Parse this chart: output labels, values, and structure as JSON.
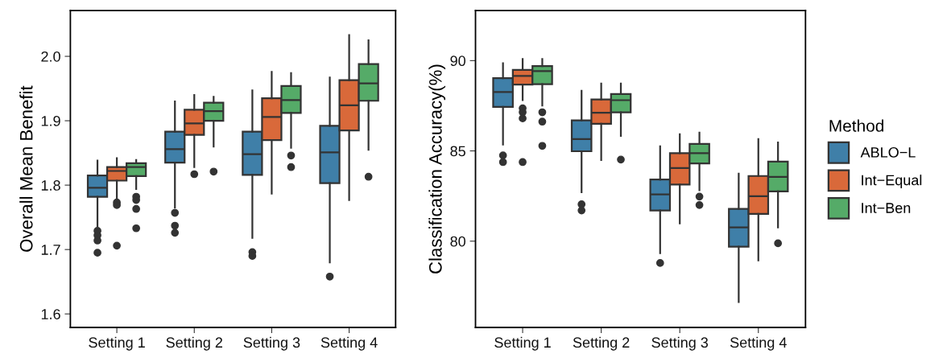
{
  "chart_data": [
    {
      "type": "box",
      "ylabel": "Overall Mean Benefit",
      "categories": [
        "Setting 1",
        "Setting 2",
        "Setting 3",
        "Setting 4"
      ],
      "ylim": [
        1.579,
        2.071
      ],
      "yticks": [
        1.6,
        1.7,
        1.8,
        1.9,
        {
          "value": 2.0,
          "label": "2.0"
        }
      ],
      "grid": false,
      "series": [
        {
          "color": "#3f7fa8",
          "boxes": [
            {
              "low": 1.736,
              "q1": 1.782,
              "median": 1.796,
              "q3": 1.815,
              "high": 1.838,
              "outliers": [
                1.729,
                1.722,
                1.714,
                1.695
              ]
            },
            {
              "low": 1.765,
              "q1": 1.835,
              "median": 1.856,
              "q3": 1.883,
              "high": 1.93,
              "outliers": [
                1.757,
                1.737,
                1.726
              ]
            },
            {
              "low": 1.718,
              "q1": 1.816,
              "median": 1.848,
              "q3": 1.883,
              "high": 1.947,
              "outliers": [
                1.696,
                1.69
              ]
            },
            {
              "low": 1.68,
              "q1": 1.803,
              "median": 1.851,
              "q3": 1.892,
              "high": 1.967,
              "outliers": [
                1.658
              ]
            }
          ]
        },
        {
          "color": "#d9693a",
          "boxes": [
            {
              "low": 1.777,
              "q1": 1.807,
              "median": 1.822,
              "q3": 1.828,
              "high": 1.842,
              "outliers": [
                1.773,
                1.769,
                1.706
              ]
            },
            {
              "low": 1.828,
              "q1": 1.878,
              "median": 1.896,
              "q3": 1.917,
              "high": 1.94,
              "outliers": [
                1.817
              ]
            },
            {
              "low": 1.787,
              "q1": 1.87,
              "median": 1.906,
              "q3": 1.935,
              "high": 1.976
            },
            {
              "low": 1.777,
              "q1": 1.885,
              "median": 1.924,
              "q3": 1.963,
              "high": 2.033
            }
          ]
        },
        {
          "color": "#55ab68",
          "boxes": [
            {
              "low": 1.794,
              "q1": 1.814,
              "median": 1.828,
              "q3": 1.834,
              "high": 1.839,
              "outliers": [
                1.782,
                1.777,
                1.763,
                1.733
              ]
            },
            {
              "low": 1.86,
              "q1": 1.9,
              "median": 1.915,
              "q3": 1.928,
              "high": 1.937,
              "outliers": [
                1.821
              ]
            },
            {
              "low": 1.858,
              "q1": 1.912,
              "median": 1.932,
              "q3": 1.954,
              "high": 1.974,
              "outliers": [
                1.846,
                1.828
              ]
            },
            {
              "low": 1.855,
              "q1": 1.931,
              "median": 1.958,
              "q3": 1.988,
              "high": 2.025,
              "outliers": [
                1.813
              ]
            }
          ]
        }
      ]
    },
    {
      "type": "box",
      "ylabel": "Classification Accuracy(%)",
      "legend_title": "Method",
      "categories": [
        "Setting 1",
        "Setting 2",
        "Setting 3",
        "Setting 4"
      ],
      "ylim": [
        75.22,
        92.77
      ],
      "yticks": [
        80,
        85,
        90
      ],
      "grid": false,
      "legend": "right",
      "series": [
        {
          "name": "ABLO−L",
          "color": "#3f7fa8",
          "boxes": [
            {
              "low": 85.35,
              "q1": 87.44,
              "median": 88.26,
              "q3": 89.03,
              "high": 89.85,
              "outliers": [
                84.75,
                84.38
              ]
            },
            {
              "low": 82.71,
              "q1": 84.98,
              "median": 85.65,
              "q3": 86.69,
              "high": 88.33,
              "outliers": [
                82.04,
                81.7
              ]
            },
            {
              "low": 79.34,
              "q1": 81.7,
              "median": 82.59,
              "q3": 83.41,
              "high": 85.25,
              "outliers": [
                78.79
              ]
            },
            {
              "low": 76.63,
              "q1": 79.69,
              "median": 80.76,
              "q3": 81.79,
              "high": 83.74
            }
          ]
        },
        {
          "name": "Int−Equal",
          "color": "#d9693a",
          "boxes": [
            {
              "low": 87.81,
              "q1": 88.67,
              "median": 89.15,
              "q3": 89.49,
              "high": 90.09,
              "outliers": [
                87.36,
                87.14,
                86.8,
                84.38
              ]
            },
            {
              "low": 84.49,
              "q1": 86.5,
              "median": 87.11,
              "q3": 87.85,
              "high": 88.73
            },
            {
              "low": 80.98,
              "q1": 83.14,
              "median": 84.05,
              "q3": 84.87,
              "high": 85.92
            },
            {
              "low": 78.94,
              "q1": 81.51,
              "median": 82.49,
              "q3": 83.61,
              "high": 85.65
            }
          ]
        },
        {
          "name": "Int−Ben",
          "color": "#55ab68",
          "boxes": [
            {
              "low": 87.51,
              "q1": 88.7,
              "median": 89.42,
              "q3": 89.7,
              "high": 90.09,
              "outliers": [
                87.14,
                86.62,
                85.28
              ]
            },
            {
              "low": 85.83,
              "q1": 87.14,
              "median": 87.81,
              "q3": 88.15,
              "high": 88.73,
              "outliers": [
                84.52
              ]
            },
            {
              "low": 82.82,
              "q1": 84.31,
              "median": 84.87,
              "q3": 85.39,
              "high": 86.01,
              "outliers": [
                82.47,
                82.0
              ]
            },
            {
              "low": 80.76,
              "q1": 82.76,
              "median": 83.56,
              "q3": 84.41,
              "high": 85.47,
              "outliers": [
                79.88
              ]
            }
          ]
        }
      ]
    }
  ]
}
